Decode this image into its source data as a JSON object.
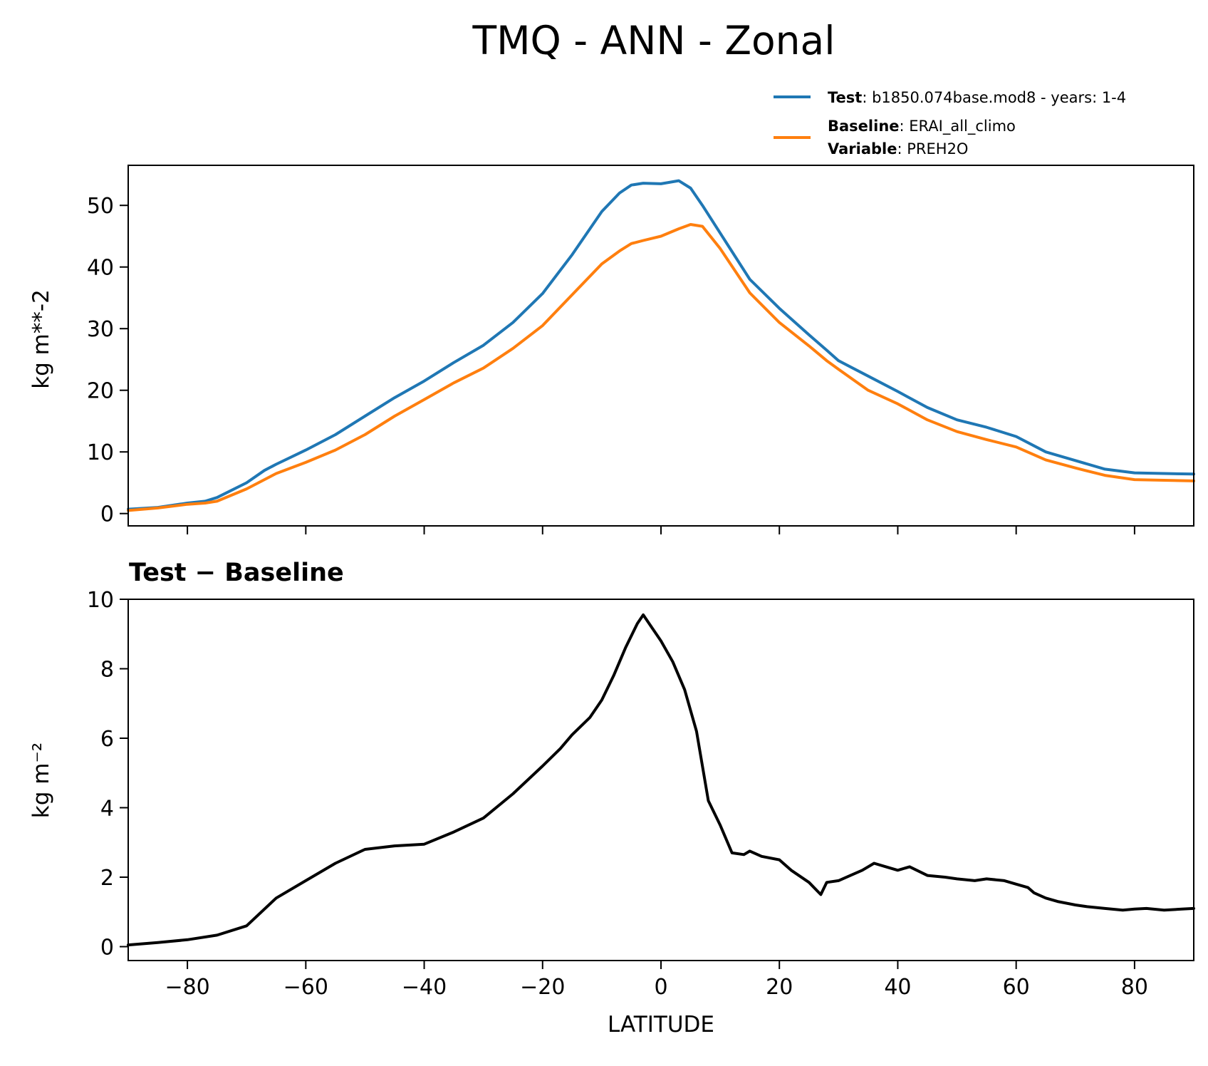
{
  "chart_data": {
    "title": "TMQ - ANN - Zonal",
    "xlabel": "LATITUDE",
    "xlim": [
      -90,
      90
    ],
    "xticks": [
      -80,
      -60,
      -40,
      -20,
      0,
      20,
      40,
      60,
      80
    ],
    "xtick_labels": [
      "−80",
      "−60",
      "−40",
      "−20",
      "0",
      "20",
      "40",
      "60",
      "80"
    ],
    "legend": {
      "test": {
        "bold": "Test",
        "sep": ": ",
        "text": "b1850.074base.mod8 - years: 1-4"
      },
      "baseline": {
        "bold": "Baseline",
        "sep": ": ",
        "text": "ERAI_all_climo"
      },
      "variable": {
        "bold": "Variable",
        "sep": ": ",
        "text": "PREH2O"
      }
    },
    "colors": {
      "test": "#1f77b4",
      "baseline": "#ff7f0e",
      "diff": "#000000"
    },
    "top": {
      "type": "line",
      "ylabel": "kg m**-2",
      "ylim": [
        -2,
        56.5
      ],
      "yticks": [
        0,
        10,
        20,
        30,
        40,
        50
      ],
      "ytick_labels": [
        "0",
        "10",
        "20",
        "30",
        "40",
        "50"
      ],
      "x": [
        -90,
        -85,
        -80,
        -77,
        -75,
        -70,
        -67,
        -65,
        -60,
        -55,
        -50,
        -45,
        -40,
        -35,
        -30,
        -25,
        -20,
        -15,
        -10,
        -7,
        -5,
        -3,
        0,
        3,
        5,
        7,
        10,
        15,
        20,
        25,
        28,
        30,
        35,
        40,
        45,
        50,
        55,
        60,
        65,
        70,
        75,
        80,
        85,
        90
      ],
      "series": [
        {
          "name": "Test",
          "values": [
            0.7,
            1.0,
            1.7,
            2.0,
            2.6,
            5.0,
            7.0,
            8.0,
            10.3,
            12.8,
            15.8,
            18.8,
            21.5,
            24.5,
            27.3,
            31.0,
            35.7,
            42.0,
            49.0,
            52.0,
            53.3,
            53.6,
            53.5,
            54.0,
            52.8,
            50.0,
            45.5,
            38.0,
            33.3,
            29.0,
            26.5,
            24.8,
            22.3,
            19.8,
            17.2,
            15.2,
            14.0,
            12.5,
            10.0,
            8.6,
            7.2,
            6.6,
            6.5,
            6.4
          ]
        },
        {
          "name": "Baseline",
          "values": [
            0.5,
            0.9,
            1.5,
            1.7,
            2.0,
            4.0,
            5.5,
            6.5,
            8.3,
            10.3,
            12.8,
            15.8,
            18.5,
            21.2,
            23.6,
            26.8,
            30.5,
            35.5,
            40.5,
            42.6,
            43.8,
            44.3,
            45.0,
            46.2,
            46.9,
            46.6,
            43.0,
            35.8,
            31.0,
            27.2,
            24.8,
            23.4,
            20.0,
            17.8,
            15.2,
            13.3,
            12.0,
            10.8,
            8.7,
            7.4,
            6.2,
            5.5,
            5.4,
            5.3
          ]
        }
      ]
    },
    "bottom": {
      "type": "line",
      "title": "Test − Baseline",
      "ylabel": "kg m⁻²",
      "ylim": [
        -0.4,
        10.0
      ],
      "yticks": [
        0,
        2,
        4,
        6,
        8,
        10
      ],
      "ytick_labels": [
        "0",
        "2",
        "4",
        "6",
        "8",
        "10"
      ],
      "x": [
        -90,
        -85,
        -80,
        -75,
        -70,
        -65,
        -60,
        -55,
        -50,
        -45,
        -40,
        -35,
        -30,
        -25,
        -20,
        -17,
        -15,
        -12,
        -10,
        -8,
        -6,
        -4,
        -3,
        -2,
        0,
        2,
        4,
        6,
        8,
        10,
        12,
        14,
        15,
        17,
        20,
        22,
        25,
        27,
        28,
        30,
        32,
        34,
        36,
        38,
        40,
        42,
        45,
        48,
        50,
        53,
        55,
        58,
        60,
        62,
        63,
        65,
        67,
        70,
        72,
        75,
        78,
        80,
        82,
        85,
        88,
        90
      ],
      "series": [
        {
          "name": "Test − Baseline",
          "values": [
            0.05,
            0.12,
            0.2,
            0.33,
            0.6,
            1.4,
            1.9,
            2.4,
            2.8,
            2.9,
            2.95,
            3.3,
            3.7,
            4.4,
            5.2,
            5.7,
            6.1,
            6.6,
            7.1,
            7.8,
            8.6,
            9.3,
            9.55,
            9.3,
            8.8,
            8.2,
            7.4,
            6.2,
            4.2,
            3.5,
            2.7,
            2.65,
            2.75,
            2.6,
            2.5,
            2.2,
            1.85,
            1.5,
            1.85,
            1.9,
            2.05,
            2.2,
            2.4,
            2.3,
            2.2,
            2.3,
            2.05,
            2.0,
            1.95,
            1.9,
            1.95,
            1.9,
            1.8,
            1.7,
            1.55,
            1.4,
            1.3,
            1.2,
            1.15,
            1.1,
            1.05,
            1.08,
            1.1,
            1.05,
            1.08,
            1.1
          ]
        }
      ]
    }
  }
}
